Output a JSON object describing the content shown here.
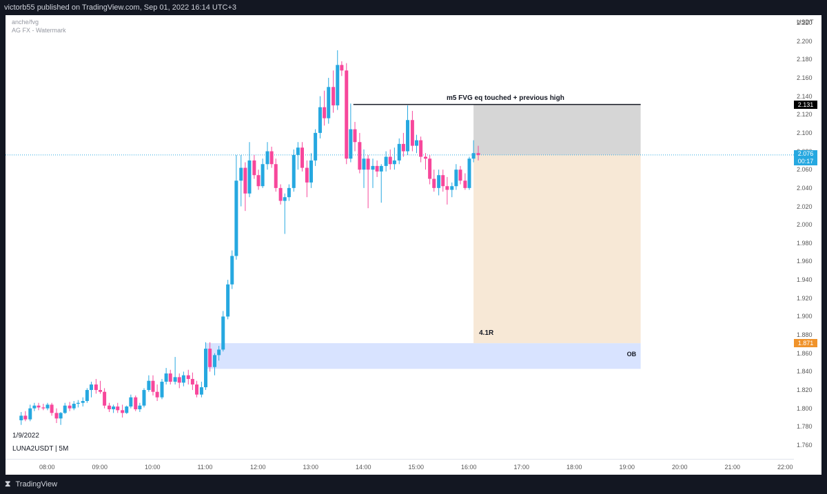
{
  "header": {
    "published_text": "victorb55 published on TradingView.com, Sep 01, 2022 16:14 UTC+3"
  },
  "watermarks": {
    "line1": "anche/fvg",
    "line2": "AG FX - Watermark"
  },
  "footer": {
    "logo_glyph": "⧗",
    "brand": "TradingView"
  },
  "chart_data": {
    "type": "candlestick",
    "symbol": "LUNA2USDT",
    "interval": "5M",
    "symbol_label": "LUNA2USDT | 5M",
    "date_label": "1/9/2022",
    "currency": "USDT",
    "ylim": [
      1.75,
      2.23
    ],
    "y_ticks": [
      "2.220",
      "2.200",
      "2.180",
      "2.160",
      "2.140",
      "2.120",
      "2.100",
      "2.080",
      "2.060",
      "2.040",
      "2.020",
      "2.000",
      "1.980",
      "1.960",
      "1.940",
      "1.920",
      "1.900",
      "1.880",
      "1.860",
      "1.840",
      "1.820",
      "1.800",
      "1.780",
      "1.760"
    ],
    "x_ticks": [
      "08:00",
      "09:00",
      "10:00",
      "11:00",
      "12:00",
      "13:00",
      "14:00",
      "15:00",
      "16:00",
      "17:00",
      "18:00",
      "19:00",
      "20:00",
      "21:00",
      "22:00"
    ],
    "x_tick_hours": [
      8,
      9,
      10,
      11,
      12,
      13,
      14,
      15,
      16,
      17,
      18,
      19,
      20,
      21,
      22
    ],
    "x_range_hours": [
      7.46,
      22.25
    ],
    "current_price": "2.076",
    "countdown": "00:17",
    "current_price_value": 2.076,
    "up_color": "#26a8e0",
    "down_color": "#f7479b",
    "candles": [
      {
        "t": 7.5,
        "o": 1.787,
        "h": 1.796,
        "l": 1.782,
        "c": 1.792
      },
      {
        "t": 7.58,
        "o": 1.792,
        "h": 1.797,
        "l": 1.786,
        "c": 1.788
      },
      {
        "t": 7.67,
        "o": 1.788,
        "h": 1.804,
        "l": 1.786,
        "c": 1.8
      },
      {
        "t": 7.75,
        "o": 1.8,
        "h": 1.806,
        "l": 1.797,
        "c": 1.803
      },
      {
        "t": 7.83,
        "o": 1.803,
        "h": 1.806,
        "l": 1.798,
        "c": 1.801
      },
      {
        "t": 7.92,
        "o": 1.801,
        "h": 1.805,
        "l": 1.798,
        "c": 1.8
      },
      {
        "t": 8.0,
        "o": 1.8,
        "h": 1.806,
        "l": 1.798,
        "c": 1.804
      },
      {
        "t": 8.08,
        "o": 1.804,
        "h": 1.806,
        "l": 1.792,
        "c": 1.795
      },
      {
        "t": 8.17,
        "o": 1.795,
        "h": 1.8,
        "l": 1.784,
        "c": 1.789
      },
      {
        "t": 8.25,
        "o": 1.789,
        "h": 1.796,
        "l": 1.782,
        "c": 1.795
      },
      {
        "t": 8.33,
        "o": 1.795,
        "h": 1.806,
        "l": 1.794,
        "c": 1.803
      },
      {
        "t": 8.42,
        "o": 1.803,
        "h": 1.807,
        "l": 1.797,
        "c": 1.8
      },
      {
        "t": 8.5,
        "o": 1.8,
        "h": 1.808,
        "l": 1.798,
        "c": 1.805
      },
      {
        "t": 8.58,
        "o": 1.805,
        "h": 1.809,
        "l": 1.801,
        "c": 1.806
      },
      {
        "t": 8.67,
        "o": 1.806,
        "h": 1.812,
        "l": 1.802,
        "c": 1.808
      },
      {
        "t": 8.75,
        "o": 1.808,
        "h": 1.822,
        "l": 1.806,
        "c": 1.82
      },
      {
        "t": 8.83,
        "o": 1.82,
        "h": 1.829,
        "l": 1.812,
        "c": 1.826
      },
      {
        "t": 8.92,
        "o": 1.826,
        "h": 1.832,
        "l": 1.816,
        "c": 1.82
      },
      {
        "t": 9.0,
        "o": 1.82,
        "h": 1.83,
        "l": 1.816,
        "c": 1.818
      },
      {
        "t": 9.08,
        "o": 1.818,
        "h": 1.822,
        "l": 1.8,
        "c": 1.803
      },
      {
        "t": 9.17,
        "o": 1.803,
        "h": 1.806,
        "l": 1.796,
        "c": 1.799
      },
      {
        "t": 9.25,
        "o": 1.799,
        "h": 1.804,
        "l": 1.795,
        "c": 1.802
      },
      {
        "t": 9.33,
        "o": 1.802,
        "h": 1.806,
        "l": 1.795,
        "c": 1.798
      },
      {
        "t": 9.42,
        "o": 1.798,
        "h": 1.804,
        "l": 1.79,
        "c": 1.795
      },
      {
        "t": 9.5,
        "o": 1.795,
        "h": 1.803,
        "l": 1.794,
        "c": 1.802
      },
      {
        "t": 9.58,
        "o": 1.802,
        "h": 1.815,
        "l": 1.8,
        "c": 1.812
      },
      {
        "t": 9.67,
        "o": 1.812,
        "h": 1.814,
        "l": 1.797,
        "c": 1.799
      },
      {
        "t": 9.75,
        "o": 1.799,
        "h": 1.806,
        "l": 1.796,
        "c": 1.803
      },
      {
        "t": 9.83,
        "o": 1.803,
        "h": 1.822,
        "l": 1.801,
        "c": 1.82
      },
      {
        "t": 9.92,
        "o": 1.82,
        "h": 1.836,
        "l": 1.818,
        "c": 1.83
      },
      {
        "t": 10.0,
        "o": 1.83,
        "h": 1.836,
        "l": 1.814,
        "c": 1.818
      },
      {
        "t": 10.08,
        "o": 1.818,
        "h": 1.826,
        "l": 1.808,
        "c": 1.812
      },
      {
        "t": 10.17,
        "o": 1.812,
        "h": 1.832,
        "l": 1.81,
        "c": 1.829
      },
      {
        "t": 10.25,
        "o": 1.829,
        "h": 1.844,
        "l": 1.826,
        "c": 1.838
      },
      {
        "t": 10.33,
        "o": 1.838,
        "h": 1.842,
        "l": 1.826,
        "c": 1.829
      },
      {
        "t": 10.42,
        "o": 1.829,
        "h": 1.856,
        "l": 1.826,
        "c": 1.834
      },
      {
        "t": 10.5,
        "o": 1.834,
        "h": 1.838,
        "l": 1.822,
        "c": 1.828
      },
      {
        "t": 10.58,
        "o": 1.828,
        "h": 1.84,
        "l": 1.824,
        "c": 1.836
      },
      {
        "t": 10.67,
        "o": 1.836,
        "h": 1.842,
        "l": 1.826,
        "c": 1.832
      },
      {
        "t": 10.75,
        "o": 1.832,
        "h": 1.839,
        "l": 1.82,
        "c": 1.826
      },
      {
        "t": 10.83,
        "o": 1.826,
        "h": 1.83,
        "l": 1.812,
        "c": 1.815
      },
      {
        "t": 10.92,
        "o": 1.815,
        "h": 1.829,
        "l": 1.812,
        "c": 1.823
      },
      {
        "t": 11.0,
        "o": 1.823,
        "h": 1.872,
        "l": 1.82,
        "c": 1.865
      },
      {
        "t": 11.08,
        "o": 1.865,
        "h": 1.872,
        "l": 1.84,
        "c": 1.845
      },
      {
        "t": 11.17,
        "o": 1.845,
        "h": 1.86,
        "l": 1.836,
        "c": 1.858
      },
      {
        "t": 11.25,
        "o": 1.858,
        "h": 1.868,
        "l": 1.852,
        "c": 1.864
      },
      {
        "t": 11.33,
        "o": 1.864,
        "h": 1.906,
        "l": 1.862,
        "c": 1.9
      },
      {
        "t": 11.42,
        "o": 1.9,
        "h": 1.94,
        "l": 1.897,
        "c": 1.935
      },
      {
        "t": 11.5,
        "o": 1.935,
        "h": 1.972,
        "l": 1.93,
        "c": 1.966
      },
      {
        "t": 11.58,
        "o": 1.966,
        "h": 2.076,
        "l": 1.962,
        "c": 2.048
      },
      {
        "t": 11.67,
        "o": 2.048,
        "h": 2.076,
        "l": 2.02,
        "c": 2.062
      },
      {
        "t": 11.75,
        "o": 2.062,
        "h": 2.068,
        "l": 2.015,
        "c": 2.034
      },
      {
        "t": 11.83,
        "o": 2.034,
        "h": 2.09,
        "l": 2.03,
        "c": 2.07
      },
      {
        "t": 11.92,
        "o": 2.07,
        "h": 2.076,
        "l": 2.05,
        "c": 2.054
      },
      {
        "t": 12.0,
        "o": 2.054,
        "h": 2.06,
        "l": 2.038,
        "c": 2.042
      },
      {
        "t": 12.08,
        "o": 2.042,
        "h": 2.072,
        "l": 2.04,
        "c": 2.066
      },
      {
        "t": 12.17,
        "o": 2.066,
        "h": 2.09,
        "l": 2.06,
        "c": 2.08
      },
      {
        "t": 12.25,
        "o": 2.08,
        "h": 2.085,
        "l": 2.062,
        "c": 2.066
      },
      {
        "t": 12.33,
        "o": 2.066,
        "h": 2.072,
        "l": 2.036,
        "c": 2.04
      },
      {
        "t": 12.42,
        "o": 2.04,
        "h": 2.044,
        "l": 2.022,
        "c": 2.026
      },
      {
        "t": 12.5,
        "o": 2.026,
        "h": 2.034,
        "l": 1.99,
        "c": 2.03
      },
      {
        "t": 12.58,
        "o": 2.03,
        "h": 2.044,
        "l": 2.026,
        "c": 2.04
      },
      {
        "t": 12.67,
        "o": 2.04,
        "h": 2.082,
        "l": 2.036,
        "c": 2.076
      },
      {
        "t": 12.75,
        "o": 2.076,
        "h": 2.09,
        "l": 2.06,
        "c": 2.084
      },
      {
        "t": 12.83,
        "o": 2.084,
        "h": 2.09,
        "l": 2.058,
        "c": 2.062
      },
      {
        "t": 12.92,
        "o": 2.062,
        "h": 2.07,
        "l": 2.03,
        "c": 2.046
      },
      {
        "t": 13.0,
        "o": 2.046,
        "h": 2.078,
        "l": 2.04,
        "c": 2.07
      },
      {
        "t": 13.08,
        "o": 2.07,
        "h": 2.104,
        "l": 2.064,
        "c": 2.1
      },
      {
        "t": 13.17,
        "o": 2.1,
        "h": 2.14,
        "l": 2.094,
        "c": 2.128
      },
      {
        "t": 13.25,
        "o": 2.128,
        "h": 2.146,
        "l": 2.108,
        "c": 2.116
      },
      {
        "t": 13.33,
        "o": 2.116,
        "h": 2.16,
        "l": 2.11,
        "c": 2.15
      },
      {
        "t": 13.42,
        "o": 2.15,
        "h": 2.168,
        "l": 2.122,
        "c": 2.13
      },
      {
        "t": 13.5,
        "o": 2.13,
        "h": 2.19,
        "l": 2.125,
        "c": 2.174
      },
      {
        "t": 13.58,
        "o": 2.174,
        "h": 2.178,
        "l": 2.162,
        "c": 2.168
      },
      {
        "t": 13.67,
        "o": 2.168,
        "h": 2.176,
        "l": 2.066,
        "c": 2.072
      },
      {
        "t": 13.75,
        "o": 2.072,
        "h": 2.132,
        "l": 2.068,
        "c": 2.104
      },
      {
        "t": 13.83,
        "o": 2.104,
        "h": 2.112,
        "l": 2.08,
        "c": 2.09
      },
      {
        "t": 13.92,
        "o": 2.09,
        "h": 2.1,
        "l": 2.056,
        "c": 2.06
      },
      {
        "t": 14.0,
        "o": 2.06,
        "h": 2.082,
        "l": 2.04,
        "c": 2.072
      },
      {
        "t": 14.08,
        "o": 2.072,
        "h": 2.076,
        "l": 2.018,
        "c": 2.06
      },
      {
        "t": 14.17,
        "o": 2.06,
        "h": 2.072,
        "l": 2.04,
        "c": 2.064
      },
      {
        "t": 14.25,
        "o": 2.064,
        "h": 2.07,
        "l": 2.052,
        "c": 2.058
      },
      {
        "t": 14.33,
        "o": 2.058,
        "h": 2.066,
        "l": 2.024,
        "c": 2.064
      },
      {
        "t": 14.42,
        "o": 2.064,
        "h": 2.08,
        "l": 2.058,
        "c": 2.074
      },
      {
        "t": 14.5,
        "o": 2.074,
        "h": 2.082,
        "l": 2.06,
        "c": 2.066
      },
      {
        "t": 14.58,
        "o": 2.066,
        "h": 2.084,
        "l": 2.06,
        "c": 2.07
      },
      {
        "t": 14.67,
        "o": 2.07,
        "h": 2.094,
        "l": 2.066,
        "c": 2.088
      },
      {
        "t": 14.75,
        "o": 2.088,
        "h": 2.1,
        "l": 2.074,
        "c": 2.08
      },
      {
        "t": 14.83,
        "o": 2.08,
        "h": 2.13,
        "l": 2.076,
        "c": 2.114
      },
      {
        "t": 14.92,
        "o": 2.114,
        "h": 2.124,
        "l": 2.08,
        "c": 2.086
      },
      {
        "t": 15.0,
        "o": 2.086,
        "h": 2.098,
        "l": 2.078,
        "c": 2.092
      },
      {
        "t": 15.08,
        "o": 2.092,
        "h": 2.096,
        "l": 2.068,
        "c": 2.074
      },
      {
        "t": 15.17,
        "o": 2.074,
        "h": 2.078,
        "l": 2.06,
        "c": 2.072
      },
      {
        "t": 15.25,
        "o": 2.072,
        "h": 2.076,
        "l": 2.044,
        "c": 2.05
      },
      {
        "t": 15.33,
        "o": 2.05,
        "h": 2.06,
        "l": 2.036,
        "c": 2.04
      },
      {
        "t": 15.42,
        "o": 2.04,
        "h": 2.06,
        "l": 2.032,
        "c": 2.054
      },
      {
        "t": 15.5,
        "o": 2.054,
        "h": 2.06,
        "l": 2.036,
        "c": 2.042
      },
      {
        "t": 15.58,
        "o": 2.042,
        "h": 2.052,
        "l": 2.022,
        "c": 2.038
      },
      {
        "t": 15.67,
        "o": 2.038,
        "h": 2.046,
        "l": 2.03,
        "c": 2.042
      },
      {
        "t": 15.75,
        "o": 2.042,
        "h": 2.066,
        "l": 2.038,
        "c": 2.06
      },
      {
        "t": 15.83,
        "o": 2.06,
        "h": 2.064,
        "l": 2.044,
        "c": 2.048
      },
      {
        "t": 15.92,
        "o": 2.048,
        "h": 2.056,
        "l": 2.038,
        "c": 2.04
      },
      {
        "t": 16.0,
        "o": 2.04,
        "h": 2.074,
        "l": 2.038,
        "c": 2.072
      },
      {
        "t": 16.08,
        "o": 2.072,
        "h": 2.092,
        "l": 2.068,
        "c": 2.078
      },
      {
        "t": 16.17,
        "o": 2.078,
        "h": 2.086,
        "l": 2.07,
        "c": 2.076
      }
    ],
    "drawings": {
      "high_line": {
        "label": "m5 FVG eq touched + previous high",
        "price": 2.131,
        "t_start": 13.8,
        "t_end": 19.25
      },
      "position": {
        "ratio_label": "4.1R",
        "entry": 2.076,
        "stop": 2.131,
        "target": 1.871,
        "t_start": 16.08,
        "t_end": 19.25,
        "stop_color": "#d6d6d6",
        "target_color": "#f7e8d6"
      },
      "order_block": {
        "label": "OB",
        "top": 1.871,
        "bottom": 1.843,
        "t_start": 11.0,
        "t_end": 19.25,
        "color": "#d8e3ff"
      }
    },
    "price_tags": [
      {
        "value": "2.131",
        "price": 2.131,
        "bg": "#000000"
      },
      {
        "value": "1.871",
        "price": 1.871,
        "bg": "#f0932b"
      }
    ]
  }
}
